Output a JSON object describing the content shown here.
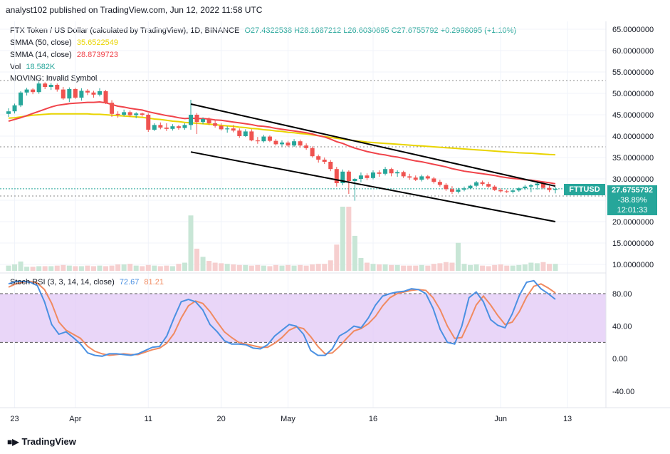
{
  "header": {
    "published": "analyst102 published on TradingView.com, Jun 12, 2022 11:58 UTC"
  },
  "main_legend": {
    "symbol": "FTX Token / US Dollar (calculated by TradingView), 1D, BINANCE",
    "ohlc": "O27.4322538  H28.1687212  L26.6030695  C27.6755792  +0.2998095 (+1.10%)"
  },
  "indicators": {
    "sma50": {
      "label": "SMMA (50, close)",
      "value": "35.6522549",
      "color": "#e9d400"
    },
    "sma14": {
      "label": "SMMA (14, close)",
      "value": "28.8739723",
      "color": "#f0434a"
    },
    "vol": {
      "label": "Vol",
      "value": "18.582K",
      "color": "#26a69a"
    },
    "moving": {
      "label": "MOVING: Invalid Symbol"
    }
  },
  "price_tag": {
    "symbol": "FTTUSD",
    "price": "27.6755792",
    "change": "-38.89%",
    "countdown": "12:01:33"
  },
  "stoch": {
    "label": "Stoch RSI (3, 3, 14, 14, close)",
    "k_value": "72.67",
    "d_value": "81.21",
    "k_color": "#4a90e2",
    "d_color": "#f08a60"
  },
  "footer": {
    "brand": "TradingView"
  },
  "chart_data": [
    {
      "type": "candlestick",
      "title": "FTX Token / US Dollar, 1D",
      "x_ticks": [
        "23",
        "Apr",
        "11",
        "20",
        "May",
        "16",
        "Jun",
        "13"
      ],
      "y_ticks": [
        "65.0000000",
        "60.0000000",
        "55.0000000",
        "50.0000000",
        "45.0000000",
        "40.0000000",
        "35.0000000",
        "30.0000000",
        "25.0000000",
        "20.0000000",
        "15.0000000",
        "10.0000000"
      ],
      "ylim": [
        10,
        65
      ],
      "ohlc": [
        [
          45.2,
          46.5,
          44.5,
          45.8
        ],
        [
          45.8,
          47.6,
          45.3,
          47.2
        ],
        [
          47.2,
          50.5,
          46.8,
          50.2
        ],
        [
          50.2,
          51.3,
          49.5,
          50.9
        ],
        [
          50.9,
          51.2,
          49.8,
          50.3
        ],
        [
          50.3,
          52.8,
          49.9,
          52.3
        ],
        [
          52.3,
          52.6,
          51.0,
          51.5
        ],
        [
          51.5,
          52.4,
          50.8,
          52.0
        ],
        [
          52.0,
          52.3,
          50.4,
          50.9
        ],
        [
          50.9,
          51.5,
          48.5,
          48.8
        ],
        [
          48.8,
          51.4,
          48.0,
          51.0
        ],
        [
          51.0,
          51.3,
          48.7,
          49.0
        ],
        [
          49.0,
          51.2,
          48.3,
          50.6
        ],
        [
          50.6,
          51.0,
          49.6,
          50.2
        ],
        [
          50.2,
          50.6,
          49.0,
          49.7
        ],
        [
          49.7,
          51.2,
          49.3,
          50.5
        ],
        [
          50.5,
          50.8,
          47.5,
          47.8
        ],
        [
          47.8,
          48.4,
          44.5,
          45.2
        ],
        [
          45.2,
          45.8,
          44.3,
          45.0
        ],
        [
          45.0,
          46.2,
          44.6,
          45.6
        ],
        [
          45.6,
          46.0,
          44.5,
          44.9
        ],
        [
          44.9,
          45.6,
          44.2,
          45.3
        ],
        [
          45.3,
          45.5,
          44.6,
          45.0
        ],
        [
          45.0,
          45.3,
          41.0,
          41.5
        ],
        [
          41.5,
          43.0,
          41.2,
          42.6
        ],
        [
          42.6,
          43.2,
          41.6,
          42.0
        ],
        [
          42.0,
          43.0,
          41.2,
          41.7
        ],
        [
          41.7,
          42.8,
          41.3,
          42.3
        ],
        [
          42.3,
          42.6,
          41.5,
          41.9
        ],
        [
          41.9,
          43.0,
          41.5,
          42.6
        ],
        [
          42.6,
          48.5,
          41.5,
          45.0
        ],
        [
          45.0,
          45.4,
          40.5,
          43.3
        ],
        [
          43.3,
          44.4,
          42.8,
          44.0
        ],
        [
          44.0,
          44.4,
          42.6,
          43.0
        ],
        [
          43.0,
          43.8,
          42.0,
          42.4
        ],
        [
          42.4,
          43.0,
          41.3,
          41.6
        ],
        [
          41.6,
          42.3,
          40.8,
          41.8
        ],
        [
          41.8,
          42.6,
          40.9,
          41.3
        ],
        [
          41.3,
          41.8,
          39.6,
          40.0
        ],
        [
          40.0,
          41.6,
          39.8,
          41.1
        ],
        [
          41.1,
          41.6,
          38.8,
          39.0
        ],
        [
          39.0,
          39.8,
          38.2,
          38.8
        ],
        [
          38.8,
          40.3,
          38.5,
          39.9
        ],
        [
          39.9,
          40.2,
          38.6,
          38.9
        ],
        [
          38.9,
          39.3,
          37.8,
          38.1
        ],
        [
          38.1,
          39.0,
          37.6,
          38.5
        ],
        [
          38.5,
          38.9,
          37.5,
          37.8
        ],
        [
          37.8,
          39.3,
          37.5,
          38.8
        ],
        [
          38.8,
          39.2,
          37.3,
          37.8
        ],
        [
          37.8,
          38.3,
          36.8,
          37.2
        ],
        [
          37.2,
          37.6,
          35.0,
          35.3
        ],
        [
          35.3,
          35.7,
          33.8,
          34.5
        ],
        [
          34.5,
          35.0,
          33.5,
          34.0
        ],
        [
          34.0,
          34.4,
          31.8,
          32.3
        ],
        [
          32.3,
          32.8,
          28.2,
          29.0
        ],
        [
          29.0,
          32.2,
          28.5,
          31.7
        ],
        [
          31.7,
          32.0,
          26.5,
          29.5
        ],
        [
          29.5,
          30.2,
          24.9,
          30.0
        ],
        [
          30.0,
          31.5,
          29.2,
          30.8
        ],
        [
          30.8,
          31.3,
          29.7,
          30.2
        ],
        [
          30.2,
          32.0,
          29.9,
          31.5
        ],
        [
          31.5,
          32.0,
          30.5,
          31.2
        ],
        [
          31.2,
          32.8,
          30.8,
          32.3
        ],
        [
          32.3,
          32.6,
          30.6,
          31.3
        ],
        [
          31.3,
          32.0,
          30.5,
          31.6
        ],
        [
          31.6,
          31.9,
          30.2,
          30.6
        ],
        [
          30.6,
          31.2,
          29.8,
          30.3
        ],
        [
          30.3,
          30.8,
          29.5,
          29.8
        ],
        [
          29.8,
          31.0,
          29.4,
          30.6
        ],
        [
          30.6,
          30.9,
          29.8,
          30.1
        ],
        [
          30.1,
          30.5,
          28.9,
          29.3
        ],
        [
          29.3,
          29.8,
          28.2,
          28.6
        ],
        [
          28.6,
          29.0,
          27.2,
          27.6
        ],
        [
          27.6,
          28.3,
          26.5,
          27.0
        ],
        [
          27.0,
          27.9,
          26.6,
          27.5
        ],
        [
          27.5,
          28.2,
          27.1,
          27.8
        ],
        [
          27.8,
          28.6,
          27.6,
          28.4
        ],
        [
          28.4,
          29.5,
          28.0,
          29.2
        ],
        [
          29.2,
          29.6,
          28.4,
          28.8
        ],
        [
          28.8,
          29.3,
          27.9,
          28.2
        ],
        [
          28.2,
          28.5,
          27.2,
          27.4
        ],
        [
          27.4,
          27.8,
          26.8,
          27.1
        ],
        [
          27.1,
          27.5,
          26.7,
          27.0
        ],
        [
          27.0,
          27.6,
          26.6,
          27.3
        ],
        [
          27.3,
          28.0,
          27.0,
          27.8
        ],
        [
          27.8,
          28.6,
          27.4,
          28.2
        ],
        [
          28.2,
          28.8,
          26.9,
          28.5
        ],
        [
          28.5,
          29.2,
          27.5,
          28.9
        ],
        [
          28.9,
          29.0,
          27.6,
          27.9
        ],
        [
          27.9,
          28.4,
          26.9,
          27.4
        ],
        [
          27.43,
          28.17,
          26.6,
          27.68
        ]
      ],
      "volume_k": [
        9,
        11,
        16,
        7,
        7,
        8,
        8,
        8,
        9,
        10,
        9,
        8,
        8,
        9,
        8,
        9,
        8,
        9,
        11,
        11,
        12,
        9,
        8,
        10,
        9,
        8,
        9,
        8,
        12,
        14,
        95,
        38,
        24,
        17,
        14,
        13,
        12,
        11,
        10,
        10,
        9,
        10,
        9,
        8,
        10,
        9,
        10,
        9,
        10,
        9,
        11,
        12,
        12,
        18,
        45,
        110,
        110,
        60,
        22,
        14,
        12,
        11,
        11,
        10,
        10,
        9,
        9,
        9,
        10,
        9,
        12,
        13,
        15,
        14,
        48,
        12,
        10,
        11,
        9,
        8,
        10,
        11,
        9,
        9,
        10,
        11,
        14,
        13,
        15,
        12,
        12
      ],
      "smma_50": [
        44.2,
        44.3,
        44.5,
        44.7,
        44.9,
        45.0,
        45.1,
        45.2,
        45.2,
        45.2,
        45.2,
        45.2,
        45.2,
        45.2,
        45.1,
        45.1,
        45.0,
        44.9,
        44.8,
        44.7,
        44.6,
        44.5,
        44.4,
        44.2,
        44.0,
        43.9,
        43.7,
        43.5,
        43.4,
        43.2,
        43.1,
        43.0,
        42.9,
        42.8,
        42.7,
        42.5,
        42.4,
        42.3,
        42.1,
        42.0,
        41.8,
        41.7,
        41.5,
        41.4,
        41.2,
        41.1,
        40.9,
        40.8,
        40.6,
        40.5,
        40.3,
        40.1,
        39.9,
        39.7,
        39.5,
        39.3,
        39.1,
        38.9,
        38.8,
        38.6,
        38.5,
        38.4,
        38.3,
        38.2,
        38.1,
        38.0,
        37.9,
        37.8,
        37.7,
        37.6,
        37.5,
        37.4,
        37.3,
        37.2,
        37.1,
        37.0,
        36.9,
        36.8,
        36.7,
        36.6,
        36.5,
        36.4,
        36.3,
        36.2,
        36.1,
        36.05,
        36.0,
        35.9,
        35.8,
        35.7,
        35.65
      ],
      "smma_14": [
        43.5,
        43.9,
        44.3,
        44.8,
        45.3,
        45.8,
        46.3,
        46.8,
        47.2,
        47.4,
        47.6,
        47.7,
        47.8,
        47.9,
        47.9,
        48.0,
        47.8,
        47.4,
        47.0,
        46.8,
        46.5,
        46.3,
        46.1,
        45.7,
        45.4,
        45.1,
        44.8,
        44.6,
        44.3,
        44.1,
        44.2,
        44.1,
        44.1,
        44.0,
        43.8,
        43.7,
        43.5,
        43.3,
        43.1,
        42.9,
        42.7,
        42.4,
        42.3,
        42.1,
        41.8,
        41.6,
        41.4,
        41.2,
        41.0,
        40.8,
        40.5,
        40.1,
        39.8,
        39.3,
        38.7,
        38.3,
        37.7,
        37.2,
        36.8,
        36.4,
        36.1,
        35.8,
        35.6,
        35.3,
        35.1,
        34.8,
        34.5,
        34.2,
        34.0,
        33.7,
        33.4,
        33.1,
        32.8,
        32.4,
        32.1,
        31.8,
        31.6,
        31.4,
        31.2,
        31.0,
        30.8,
        30.5,
        30.3,
        30.1,
        30.0,
        29.8,
        29.7,
        29.5,
        29.3,
        29.1,
        28.87
      ],
      "trendlines": [
        {
          "x0_index": 30,
          "y0": 47.5,
          "x1_index": 90,
          "y1": 28.3
        },
        {
          "x0_index": 30,
          "y0": 36.3,
          "x1_index": 90,
          "y1": 20.0
        }
      ],
      "horizontal_levels": [
        53.0,
        37.5,
        26.0
      ]
    },
    {
      "type": "line",
      "title": "Stoch RSI (3, 3, 14, 14, close)",
      "y_ticks": [
        "80.00",
        "40.00",
        "0.00",
        "-40.00"
      ],
      "ylim": [
        -55,
        105
      ],
      "band": [
        20,
        80
      ],
      "series": [
        {
          "name": "K",
          "values": [
            92,
            95,
            95,
            94,
            90,
            70,
            42,
            30,
            33,
            26,
            18,
            7,
            4,
            3,
            6,
            6,
            5,
            4,
            6,
            10,
            14,
            15,
            28,
            50,
            70,
            73,
            70,
            60,
            42,
            33,
            22,
            18,
            18,
            17,
            13,
            12,
            17,
            28,
            35,
            42,
            40,
            30,
            10,
            4,
            4,
            12,
            28,
            33,
            40,
            38,
            50,
            66,
            77,
            80,
            82,
            83,
            86,
            85,
            80,
            62,
            36,
            20,
            18,
            40,
            75,
            82,
            70,
            48,
            41,
            38,
            55,
            78,
            94,
            96,
            86,
            80,
            73
          ]
        },
        {
          "name": "D",
          "values": [
            88,
            92,
            94,
            95,
            93,
            85,
            68,
            45,
            35,
            30,
            25,
            15,
            9,
            6,
            4,
            5,
            6,
            5,
            5,
            8,
            11,
            13,
            19,
            31,
            50,
            65,
            71,
            68,
            58,
            45,
            33,
            26,
            20,
            18,
            16,
            14,
            14,
            19,
            26,
            35,
            39,
            37,
            27,
            15,
            6,
            7,
            15,
            25,
            34,
            37,
            43,
            52,
            65,
            75,
            80,
            82,
            84,
            85,
            84,
            75,
            60,
            40,
            25,
            26,
            45,
            66,
            77,
            66,
            53,
            42,
            45,
            58,
            76,
            89,
            92,
            87,
            81
          ]
        }
      ]
    }
  ]
}
